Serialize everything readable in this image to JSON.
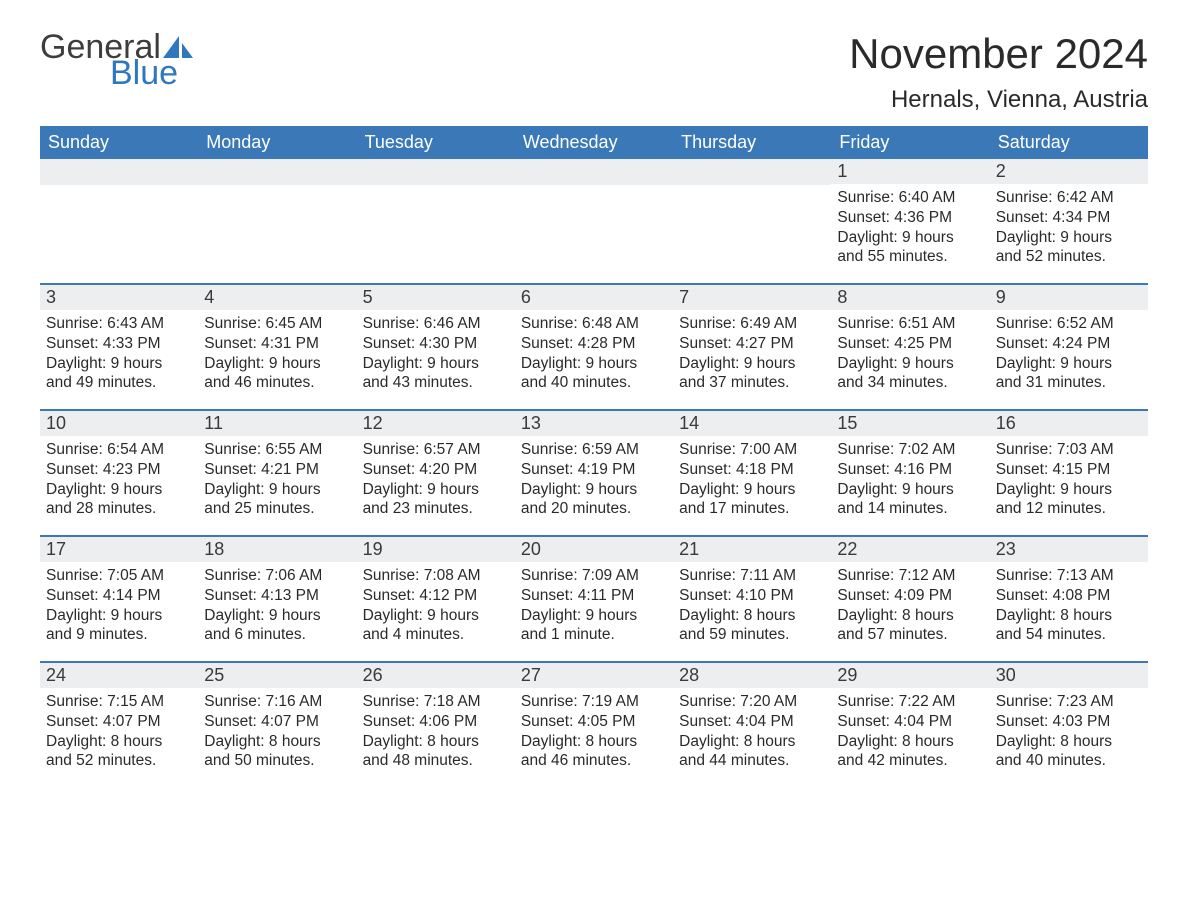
{
  "logo": {
    "text_general": "General",
    "text_blue": "Blue",
    "sail_color": "#2f78bf",
    "general_color": "#3d3d3d",
    "blue_color": "#2f78bf"
  },
  "title": {
    "month": "November 2024",
    "location": "Hernals, Vienna, Austria"
  },
  "colors": {
    "header_bg": "#3a78b8",
    "header_text": "#ffffff",
    "daynum_bg": "#eceeef",
    "body_text": "#2a2a2a",
    "rule": "#3a78b8",
    "page_bg": "#ffffff"
  },
  "weekdays": [
    "Sunday",
    "Monday",
    "Tuesday",
    "Wednesday",
    "Thursday",
    "Friday",
    "Saturday"
  ],
  "weeks": [
    [
      null,
      null,
      null,
      null,
      null,
      {
        "n": "1",
        "sunrise": "Sunrise: 6:40 AM",
        "sunset": "Sunset: 4:36 PM",
        "day1": "Daylight: 9 hours",
        "day2": "and 55 minutes."
      },
      {
        "n": "2",
        "sunrise": "Sunrise: 6:42 AM",
        "sunset": "Sunset: 4:34 PM",
        "day1": "Daylight: 9 hours",
        "day2": "and 52 minutes."
      }
    ],
    [
      {
        "n": "3",
        "sunrise": "Sunrise: 6:43 AM",
        "sunset": "Sunset: 4:33 PM",
        "day1": "Daylight: 9 hours",
        "day2": "and 49 minutes."
      },
      {
        "n": "4",
        "sunrise": "Sunrise: 6:45 AM",
        "sunset": "Sunset: 4:31 PM",
        "day1": "Daylight: 9 hours",
        "day2": "and 46 minutes."
      },
      {
        "n": "5",
        "sunrise": "Sunrise: 6:46 AM",
        "sunset": "Sunset: 4:30 PM",
        "day1": "Daylight: 9 hours",
        "day2": "and 43 minutes."
      },
      {
        "n": "6",
        "sunrise": "Sunrise: 6:48 AM",
        "sunset": "Sunset: 4:28 PM",
        "day1": "Daylight: 9 hours",
        "day2": "and 40 minutes."
      },
      {
        "n": "7",
        "sunrise": "Sunrise: 6:49 AM",
        "sunset": "Sunset: 4:27 PM",
        "day1": "Daylight: 9 hours",
        "day2": "and 37 minutes."
      },
      {
        "n": "8",
        "sunrise": "Sunrise: 6:51 AM",
        "sunset": "Sunset: 4:25 PM",
        "day1": "Daylight: 9 hours",
        "day2": "and 34 minutes."
      },
      {
        "n": "9",
        "sunrise": "Sunrise: 6:52 AM",
        "sunset": "Sunset: 4:24 PM",
        "day1": "Daylight: 9 hours",
        "day2": "and 31 minutes."
      }
    ],
    [
      {
        "n": "10",
        "sunrise": "Sunrise: 6:54 AM",
        "sunset": "Sunset: 4:23 PM",
        "day1": "Daylight: 9 hours",
        "day2": "and 28 minutes."
      },
      {
        "n": "11",
        "sunrise": "Sunrise: 6:55 AM",
        "sunset": "Sunset: 4:21 PM",
        "day1": "Daylight: 9 hours",
        "day2": "and 25 minutes."
      },
      {
        "n": "12",
        "sunrise": "Sunrise: 6:57 AM",
        "sunset": "Sunset: 4:20 PM",
        "day1": "Daylight: 9 hours",
        "day2": "and 23 minutes."
      },
      {
        "n": "13",
        "sunrise": "Sunrise: 6:59 AM",
        "sunset": "Sunset: 4:19 PM",
        "day1": "Daylight: 9 hours",
        "day2": "and 20 minutes."
      },
      {
        "n": "14",
        "sunrise": "Sunrise: 7:00 AM",
        "sunset": "Sunset: 4:18 PM",
        "day1": "Daylight: 9 hours",
        "day2": "and 17 minutes."
      },
      {
        "n": "15",
        "sunrise": "Sunrise: 7:02 AM",
        "sunset": "Sunset: 4:16 PM",
        "day1": "Daylight: 9 hours",
        "day2": "and 14 minutes."
      },
      {
        "n": "16",
        "sunrise": "Sunrise: 7:03 AM",
        "sunset": "Sunset: 4:15 PM",
        "day1": "Daylight: 9 hours",
        "day2": "and 12 minutes."
      }
    ],
    [
      {
        "n": "17",
        "sunrise": "Sunrise: 7:05 AM",
        "sunset": "Sunset: 4:14 PM",
        "day1": "Daylight: 9 hours",
        "day2": "and 9 minutes."
      },
      {
        "n": "18",
        "sunrise": "Sunrise: 7:06 AM",
        "sunset": "Sunset: 4:13 PM",
        "day1": "Daylight: 9 hours",
        "day2": "and 6 minutes."
      },
      {
        "n": "19",
        "sunrise": "Sunrise: 7:08 AM",
        "sunset": "Sunset: 4:12 PM",
        "day1": "Daylight: 9 hours",
        "day2": "and 4 minutes."
      },
      {
        "n": "20",
        "sunrise": "Sunrise: 7:09 AM",
        "sunset": "Sunset: 4:11 PM",
        "day1": "Daylight: 9 hours",
        "day2": "and 1 minute."
      },
      {
        "n": "21",
        "sunrise": "Sunrise: 7:11 AM",
        "sunset": "Sunset: 4:10 PM",
        "day1": "Daylight: 8 hours",
        "day2": "and 59 minutes."
      },
      {
        "n": "22",
        "sunrise": "Sunrise: 7:12 AM",
        "sunset": "Sunset: 4:09 PM",
        "day1": "Daylight: 8 hours",
        "day2": "and 57 minutes."
      },
      {
        "n": "23",
        "sunrise": "Sunrise: 7:13 AM",
        "sunset": "Sunset: 4:08 PM",
        "day1": "Daylight: 8 hours",
        "day2": "and 54 minutes."
      }
    ],
    [
      {
        "n": "24",
        "sunrise": "Sunrise: 7:15 AM",
        "sunset": "Sunset: 4:07 PM",
        "day1": "Daylight: 8 hours",
        "day2": "and 52 minutes."
      },
      {
        "n": "25",
        "sunrise": "Sunrise: 7:16 AM",
        "sunset": "Sunset: 4:07 PM",
        "day1": "Daylight: 8 hours",
        "day2": "and 50 minutes."
      },
      {
        "n": "26",
        "sunrise": "Sunrise: 7:18 AM",
        "sunset": "Sunset: 4:06 PM",
        "day1": "Daylight: 8 hours",
        "day2": "and 48 minutes."
      },
      {
        "n": "27",
        "sunrise": "Sunrise: 7:19 AM",
        "sunset": "Sunset: 4:05 PM",
        "day1": "Daylight: 8 hours",
        "day2": "and 46 minutes."
      },
      {
        "n": "28",
        "sunrise": "Sunrise: 7:20 AM",
        "sunset": "Sunset: 4:04 PM",
        "day1": "Daylight: 8 hours",
        "day2": "and 44 minutes."
      },
      {
        "n": "29",
        "sunrise": "Sunrise: 7:22 AM",
        "sunset": "Sunset: 4:04 PM",
        "day1": "Daylight: 8 hours",
        "day2": "and 42 minutes."
      },
      {
        "n": "30",
        "sunrise": "Sunrise: 7:23 AM",
        "sunset": "Sunset: 4:03 PM",
        "day1": "Daylight: 8 hours",
        "day2": "and 40 minutes."
      }
    ]
  ]
}
